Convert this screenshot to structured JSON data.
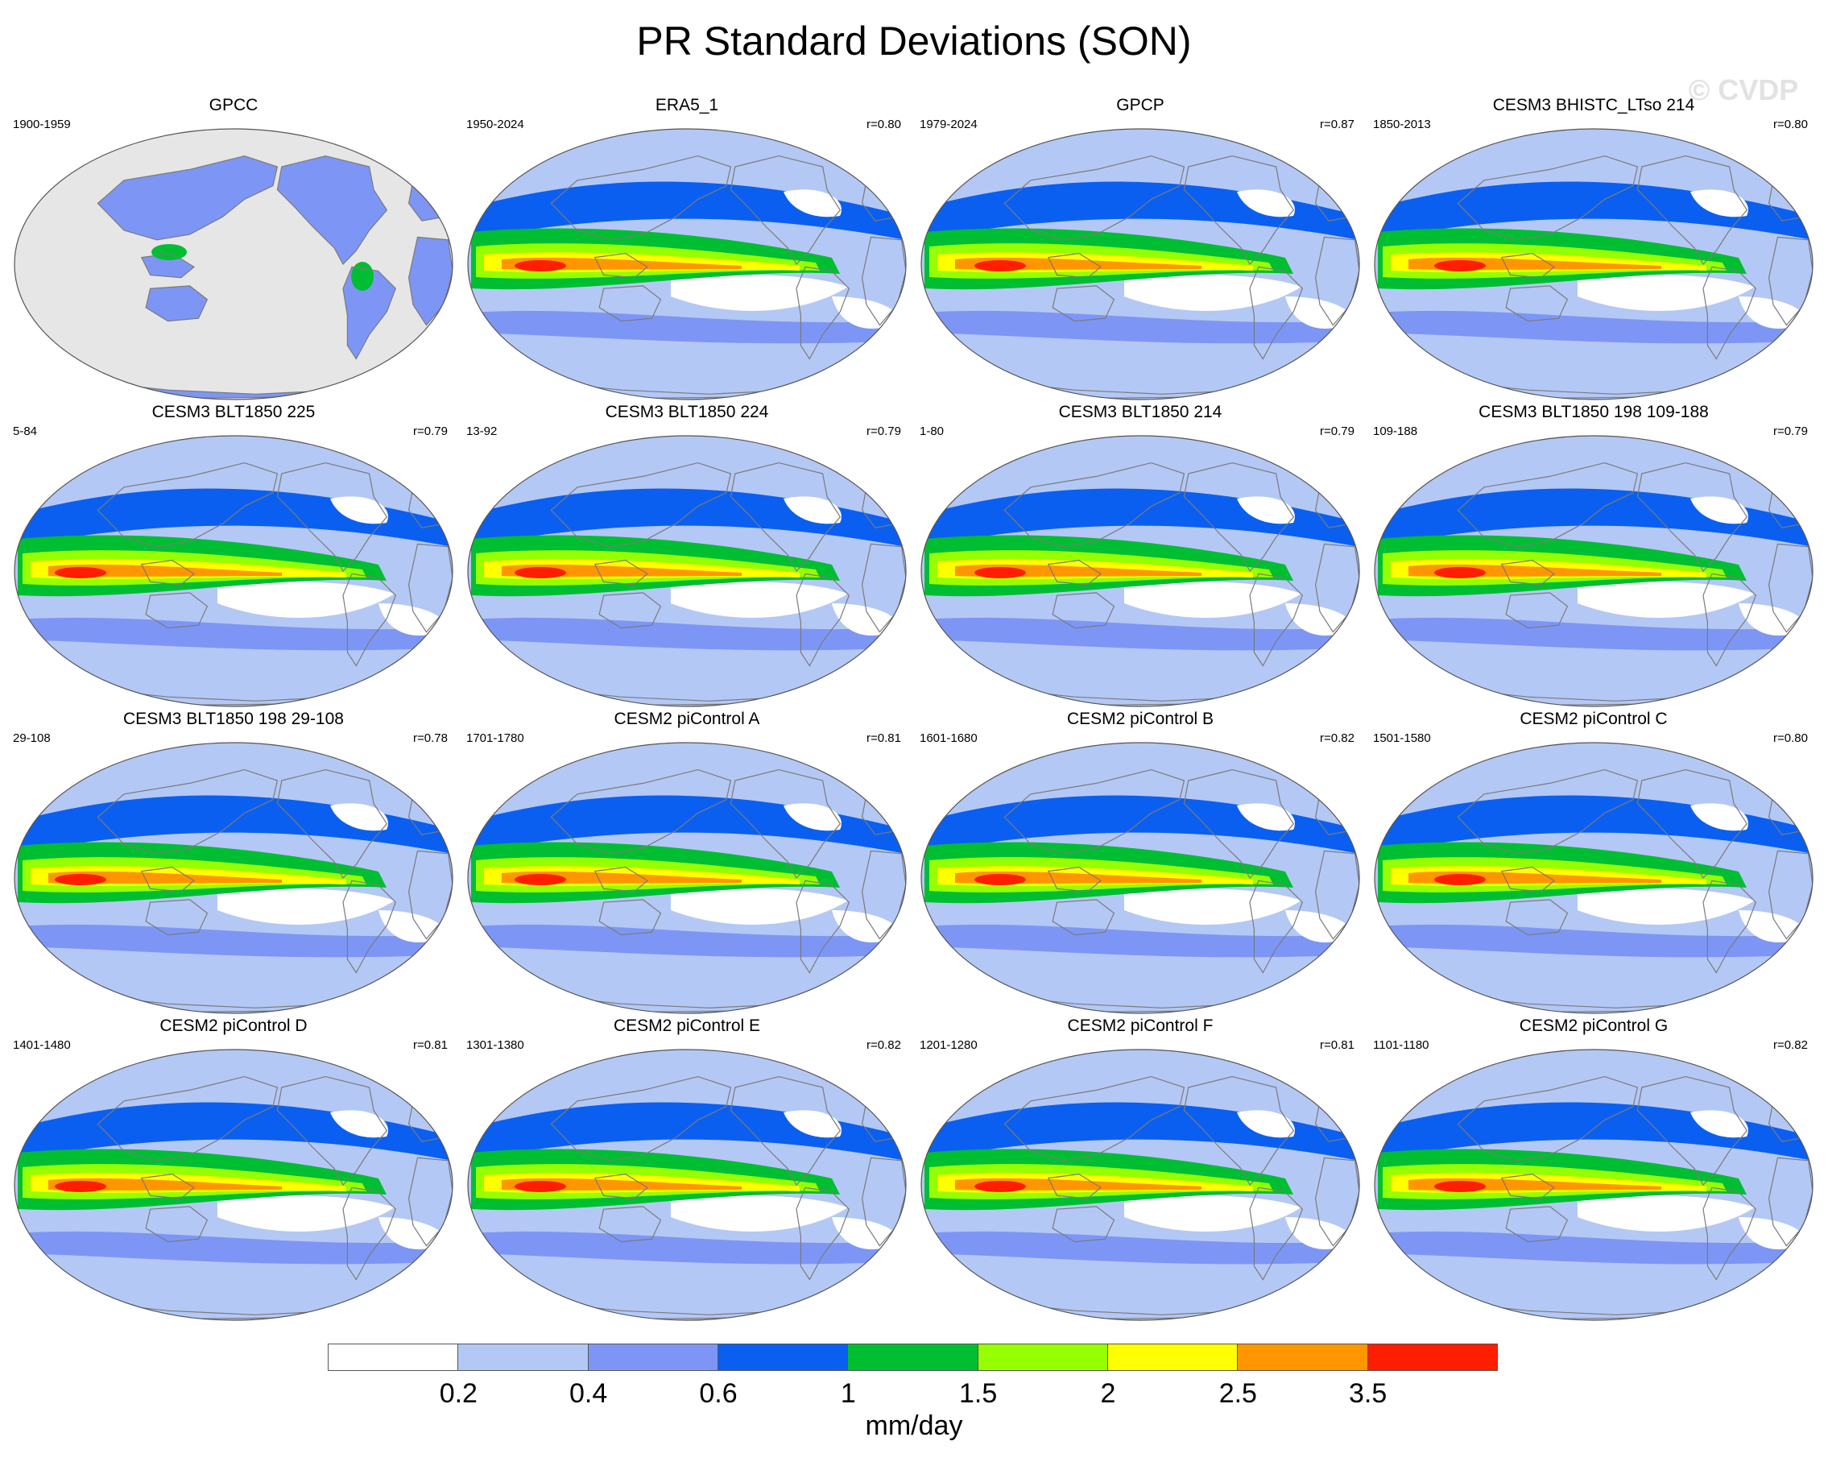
{
  "figure": {
    "title": "PR Standard Deviations (SON)",
    "watermark": "© CVDP"
  },
  "panels": [
    {
      "title": "GPCC",
      "period": "1900-1959",
      "corr": "",
      "fill": "land-only"
    },
    {
      "title": "ERA5_1",
      "period": "1950-2024",
      "corr": "r=0.80",
      "fill": "full"
    },
    {
      "title": "GPCP",
      "period": "1979-2024",
      "corr": "r=0.87",
      "fill": "full"
    },
    {
      "title": "CESM3 BHISTC_LTso 214",
      "period": "1850-2013",
      "corr": "r=0.80",
      "fill": "full"
    },
    {
      "title": "CESM3 BLT1850 225",
      "period": "5-84",
      "corr": "r=0.79",
      "fill": "full"
    },
    {
      "title": "CESM3 BLT1850 224",
      "period": "13-92",
      "corr": "r=0.79",
      "fill": "full"
    },
    {
      "title": "CESM3 BLT1850 214",
      "period": "1-80",
      "corr": "r=0.79",
      "fill": "full"
    },
    {
      "title": "CESM3 BLT1850 198 109-188",
      "period": "109-188",
      "corr": "r=0.79",
      "fill": "full"
    },
    {
      "title": "CESM3 BLT1850 198 29-108",
      "period": "29-108",
      "corr": "r=0.78",
      "fill": "full"
    },
    {
      "title": "CESM2 piControl A",
      "period": "1701-1780",
      "corr": "r=0.81",
      "fill": "full"
    },
    {
      "title": "CESM2 piControl B",
      "period": "1601-1680",
      "corr": "r=0.82",
      "fill": "full"
    },
    {
      "title": "CESM2 piControl C",
      "period": "1501-1580",
      "corr": "r=0.80",
      "fill": "full"
    },
    {
      "title": "CESM2 piControl D",
      "period": "1401-1480",
      "corr": "r=0.81",
      "fill": "full"
    },
    {
      "title": "CESM2 piControl E",
      "period": "1301-1380",
      "corr": "r=0.82",
      "fill": "full"
    },
    {
      "title": "CESM2 piControl F",
      "period": "1201-1280",
      "corr": "r=0.81",
      "fill": "full"
    },
    {
      "title": "CESM2 piControl G",
      "period": "1101-1180",
      "corr": "r=0.82",
      "fill": "full"
    }
  ],
  "colorbar": {
    "unit": "mm/day",
    "colors": [
      "#ffffff",
      "#b4c8f5",
      "#7d96f5",
      "#0a5ff0",
      "#00be32",
      "#96ff00",
      "#ffff00",
      "#ff9600",
      "#ff1e00"
    ],
    "labels": [
      "0.2",
      "0.4",
      "0.6",
      "1",
      "1.5",
      "2",
      "2.5",
      "3.5"
    ]
  },
  "map_style": {
    "ocean_missing": "#e6e6e6",
    "coast": "#7a7a7a"
  }
}
